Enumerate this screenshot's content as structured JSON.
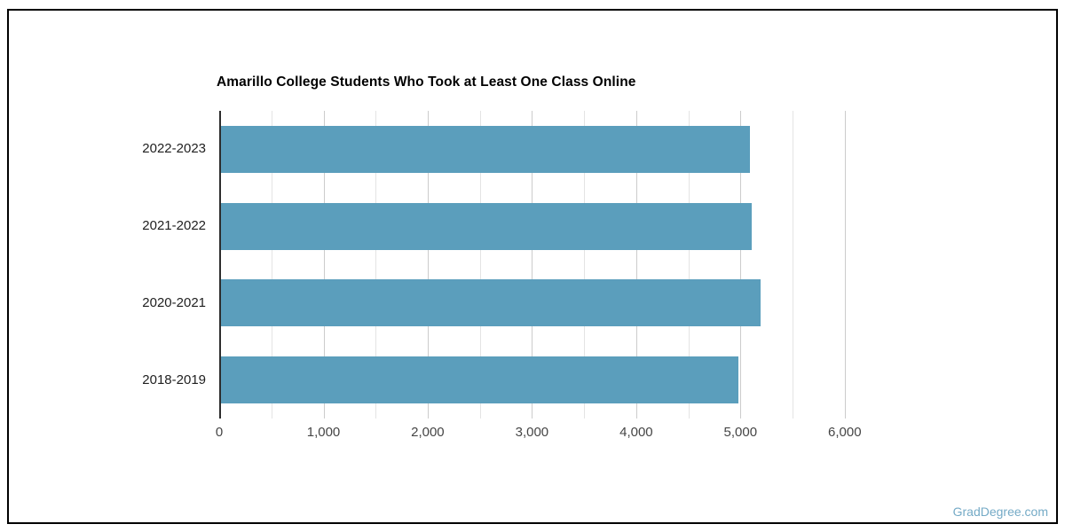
{
  "watermark": "GradDegree.com",
  "chart_data": {
    "type": "bar",
    "orientation": "horizontal",
    "title": "Amarillo College Students Who Took at Least One Class Online",
    "categories": [
      "2022-2023",
      "2021-2022",
      "2020-2021",
      "2018-2019"
    ],
    "values": [
      5075,
      5090,
      5177,
      4964
    ],
    "xlim": [
      0,
      6240
    ],
    "x_axis": {
      "tick_values": [
        0,
        1000,
        2000,
        3000,
        4000,
        5000,
        6000
      ],
      "tick_labels": [
        "0",
        "1,000",
        "2,000",
        "3,000",
        "4,000",
        "5,000",
        "6,000"
      ]
    },
    "grid_minor_values": [
      500,
      1500,
      2500,
      3500,
      4500,
      5500
    ],
    "grid": true,
    "legend": false,
    "bar_color": "#5b9ebc",
    "axis_color": "#2d2d2d",
    "grid_color": "#cccccc",
    "title_color": "#000000",
    "watermark_color": "#74aac6",
    "xlabel": "",
    "ylabel": ""
  }
}
